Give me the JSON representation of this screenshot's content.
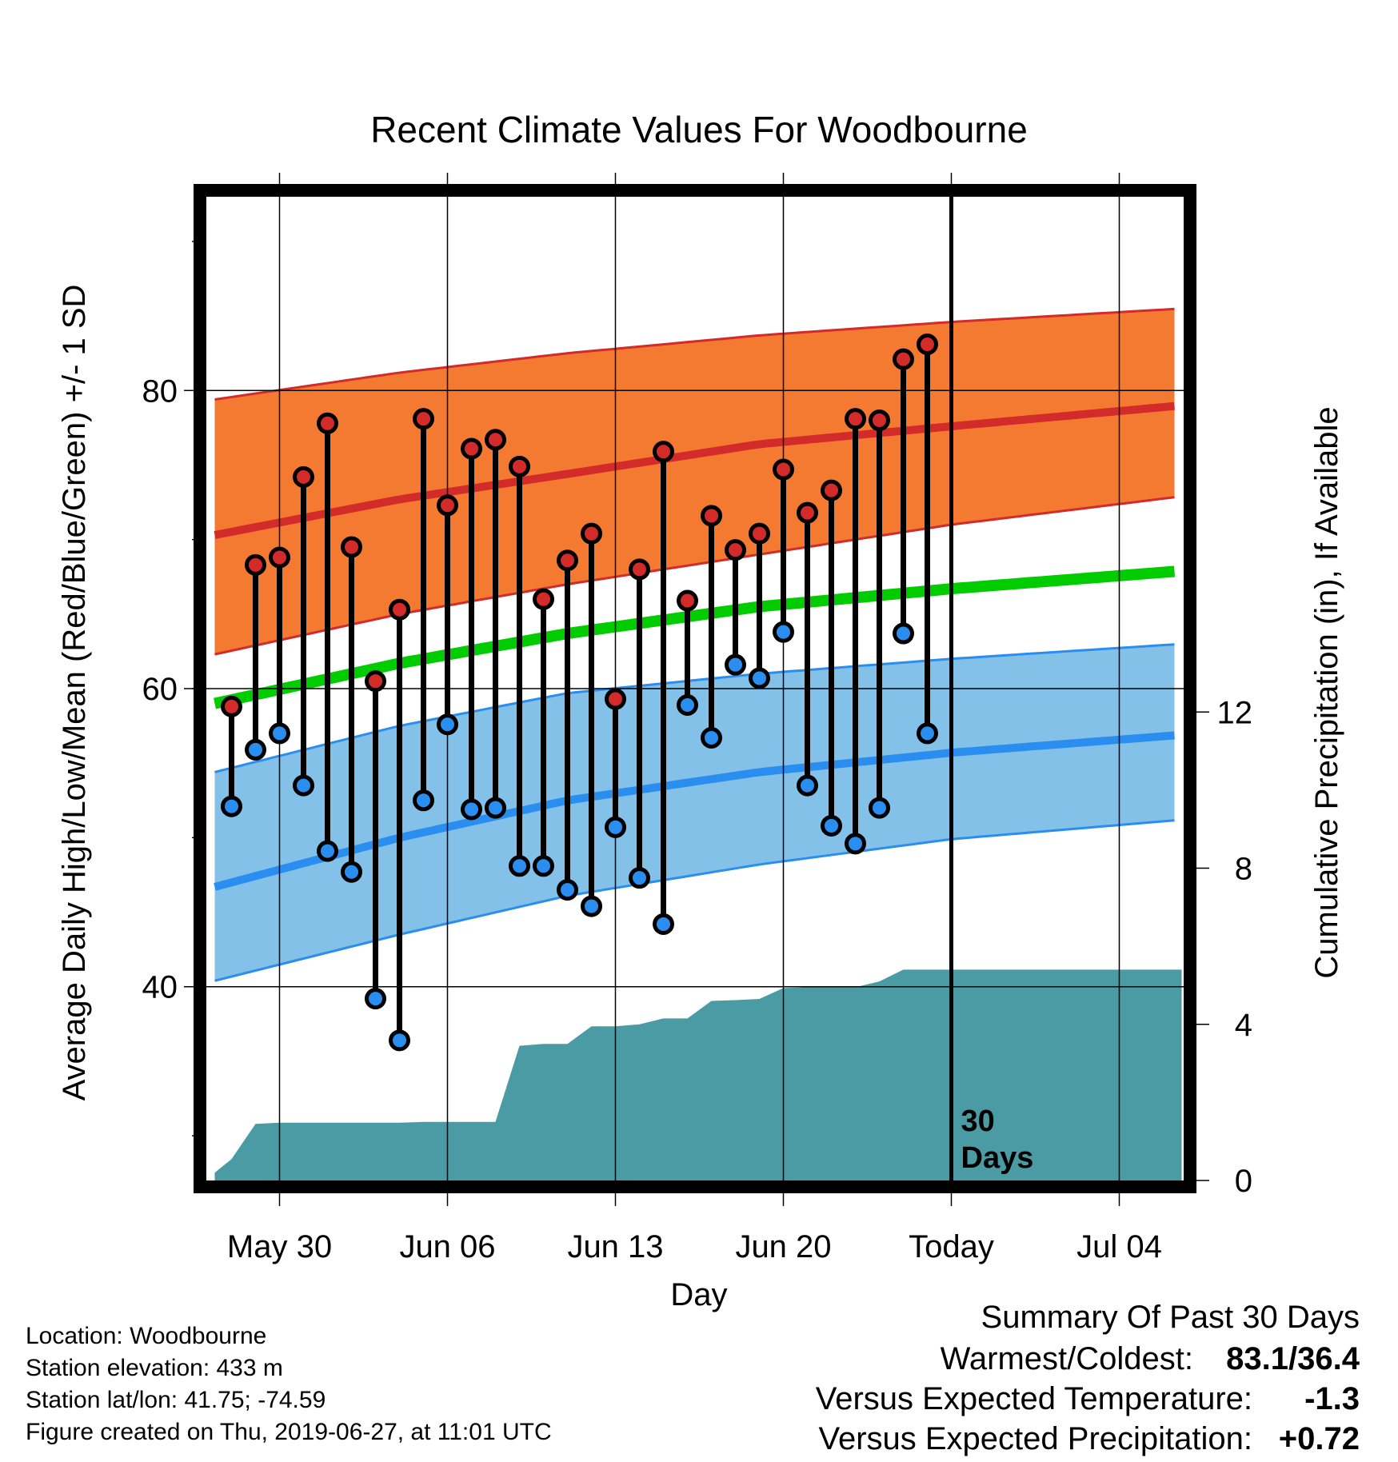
{
  "chart_data": {
    "type": "line",
    "title": "Recent Climate Values For Woodbourne",
    "xlabel": "Day",
    "ylabel": "Average Daily High/Low/Mean (Red/Blue/Green) +/- 1 SD",
    "y2label": "Cumulative Precipitation (in), If Available",
    "ylim": [
      27,
      93
    ],
    "y2lim": [
      0,
      25.2
    ],
    "yticks": [
      40,
      60,
      80
    ],
    "y2ticks": [
      0,
      4,
      8,
      12
    ],
    "xticks": [
      {
        "day": 0,
        "label": "May 30"
      },
      {
        "day": 7,
        "label": "Jun 06"
      },
      {
        "day": 14,
        "label": "Jun 13"
      },
      {
        "day": 21,
        "label": "Jun 20"
      },
      {
        "day": 28,
        "label": "Today"
      },
      {
        "day": 35,
        "label": "Jul 04"
      }
    ],
    "xlim": [
      -2.7,
      37.6
    ],
    "today_day": 28,
    "today_label": [
      "30",
      "Days"
    ],
    "grid": true,
    "normals": {
      "days": [
        -2.7,
        5,
        12,
        20,
        28,
        37.6
      ],
      "high_mean": [
        70.3,
        72.7,
        74.4,
        76.4,
        77.6,
        79.0
      ],
      "high_upper": [
        79.4,
        81.2,
        82.5,
        83.7,
        84.6,
        85.5
      ],
      "high_lower": [
        62.3,
        65.0,
        67.0,
        69.0,
        71.0,
        72.9
      ],
      "avg_mean": [
        59.0,
        61.7,
        63.7,
        65.5,
        66.7,
        67.9
      ],
      "low_mean": [
        46.7,
        50.0,
        52.5,
        54.4,
        55.7,
        56.9
      ],
      "low_upper": [
        54.4,
        57.5,
        59.7,
        61.0,
        62.0,
        63.0
      ],
      "low_lower": [
        40.4,
        43.5,
        46.1,
        48.2,
        49.9,
        51.2
      ]
    },
    "series": [
      {
        "name": "High",
        "days": [
          -2,
          -1,
          0,
          1,
          2,
          3,
          4,
          5,
          6,
          7,
          8,
          9,
          10,
          11,
          12,
          13,
          14,
          15,
          16,
          17,
          18,
          19,
          20,
          21,
          22,
          23,
          24,
          25,
          26,
          27
        ],
        "values": [
          58.8,
          68.3,
          68.8,
          74.2,
          77.8,
          69.5,
          60.5,
          65.3,
          78.1,
          72.3,
          76.1,
          76.7,
          74.9,
          66.0,
          68.6,
          70.4,
          59.3,
          68.0,
          75.9,
          65.9,
          71.6,
          69.3,
          70.4,
          74.7,
          71.8,
          73.3,
          78.1,
          78.0,
          82.1,
          83.1
        ]
      },
      {
        "name": "Low",
        "days": [
          -2,
          -1,
          0,
          1,
          2,
          3,
          4,
          5,
          6,
          7,
          8,
          9,
          10,
          11,
          12,
          13,
          14,
          15,
          16,
          17,
          18,
          19,
          20,
          21,
          22,
          23,
          24,
          25,
          26,
          27
        ],
        "values": [
          52.1,
          55.9,
          57.0,
          53.5,
          49.1,
          47.7,
          39.2,
          36.4,
          52.5,
          57.6,
          51.9,
          52.0,
          48.1,
          48.1,
          46.5,
          45.4,
          50.7,
          47.3,
          44.2,
          58.9,
          56.7,
          61.6,
          60.7,
          63.8,
          53.5,
          50.8,
          49.6,
          52.0,
          63.7,
          57.0
        ]
      },
      {
        "name": "Cumulative Precipitation",
        "days": [
          -2.7,
          -2,
          -1,
          0,
          1,
          2,
          3,
          4,
          5,
          6,
          7,
          8,
          9,
          10,
          11,
          12,
          13,
          14,
          15,
          16,
          17,
          18,
          19,
          20,
          21,
          22,
          23,
          24,
          25,
          26,
          27,
          28,
          37.6
        ],
        "values": [
          0.2,
          0.55,
          1.45,
          1.48,
          1.48,
          1.48,
          1.48,
          1.48,
          1.48,
          1.5,
          1.5,
          1.5,
          1.5,
          3.45,
          3.5,
          3.5,
          3.95,
          3.95,
          4.0,
          4.15,
          4.15,
          4.6,
          4.62,
          4.65,
          4.93,
          4.95,
          4.95,
          4.95,
          5.1,
          5.4,
          5.4,
          5.4,
          5.4
        ]
      }
    ],
    "colors": {
      "high_band": "#f47a32",
      "high_line": "#d32a2a",
      "low_band": "#84c1e8",
      "low_line": "#2a8ef0",
      "avg_line": "#00cc00",
      "precip": "#4a9ba3",
      "high_dot": "#d32a2a",
      "low_dot": "#2a8ef0"
    }
  },
  "footer": {
    "location": "Location: Woodbourne",
    "elevation": "Station elevation: 433 m",
    "latlon": "Station lat/lon: 41.75; -74.59",
    "created": "Figure created on Thu, 2019-06-27, at 11:01 UTC"
  },
  "summary": {
    "title": "Summary Of Past 30 Days",
    "warmest_label": "Warmest/Coldest:",
    "warmest_value": "83.1/36.4",
    "temp_label": "Versus Expected Temperature:",
    "temp_value": "-1.3",
    "temp_color": "#2a8ef0",
    "precip_label": "Versus Expected Precipitation:",
    "precip_value": "+0.72",
    "precip_color": "#00bb00"
  }
}
